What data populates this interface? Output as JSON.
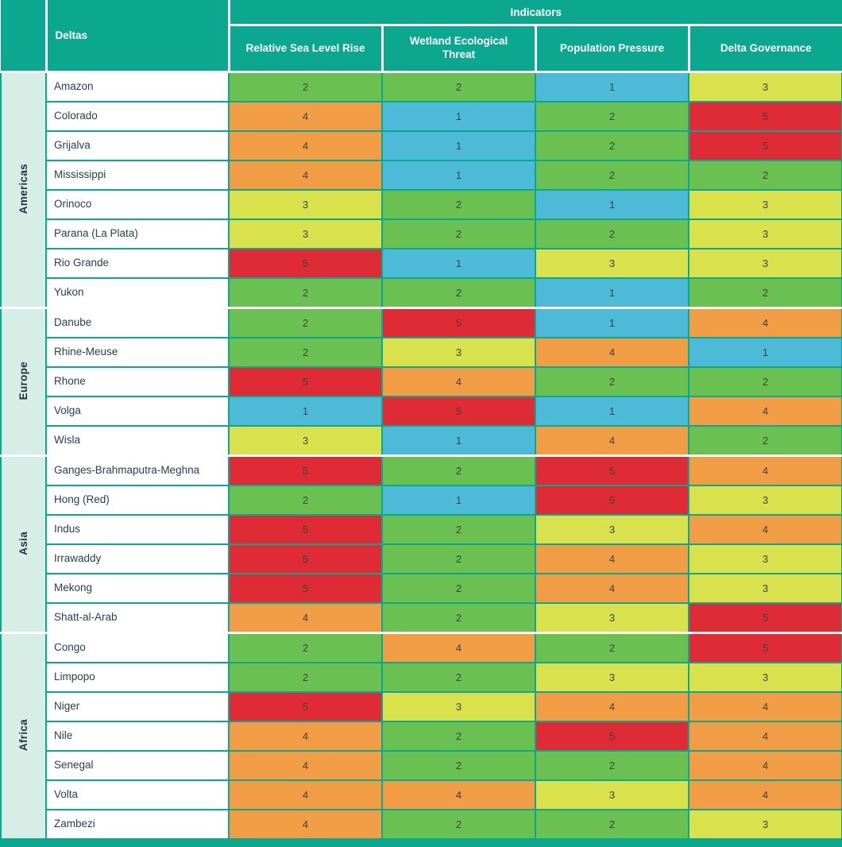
{
  "header": {
    "indicators_label": "Indicators",
    "deltas_label": "Deltas"
  },
  "colors": {
    "header_teal": "#0ba78e",
    "grid_teal": "#0ba78e",
    "region_column_bg": "#d7eee7",
    "header_text": "#ffffff",
    "delta_name_text": "#26404f",
    "score_text": "#3e4141"
  },
  "chart_data": {
    "type": "heatmap",
    "title": "Indicators",
    "row_header": "Deltas",
    "columns": [
      "Relative Sea Level Rise",
      "Wetland Ecological Threat",
      "Population Pressure",
      "Delta Governance"
    ],
    "value_scale": {
      "min": 1,
      "max": 5
    },
    "color_map": {
      "1": "#4dbbd8",
      "2": "#6ac152",
      "3": "#d9e24d",
      "4": "#f09d45",
      "5": "#df2b35"
    },
    "groups": [
      {
        "region": "Americas",
        "rows": [
          {
            "delta": "Amazon",
            "values": [
              2,
              2,
              1,
              3
            ]
          },
          {
            "delta": "Colorado",
            "values": [
              4,
              1,
              2,
              5
            ]
          },
          {
            "delta": "Grijalva",
            "values": [
              4,
              1,
              2,
              5
            ]
          },
          {
            "delta": "Mississippi",
            "values": [
              4,
              1,
              2,
              2
            ]
          },
          {
            "delta": "Orinoco",
            "values": [
              3,
              2,
              1,
              3
            ]
          },
          {
            "delta": "Parana (La Plata)",
            "values": [
              3,
              2,
              2,
              3
            ]
          },
          {
            "delta": "Rio Grande",
            "values": [
              5,
              1,
              3,
              3
            ]
          },
          {
            "delta": "Yukon",
            "values": [
              2,
              2,
              1,
              2
            ]
          }
        ]
      },
      {
        "region": "Europe",
        "rows": [
          {
            "delta": "Danube",
            "values": [
              2,
              5,
              1,
              4
            ]
          },
          {
            "delta": "Rhine-Meuse",
            "values": [
              2,
              3,
              4,
              1
            ]
          },
          {
            "delta": "Rhone",
            "values": [
              5,
              4,
              2,
              2
            ]
          },
          {
            "delta": "Volga",
            "values": [
              1,
              5,
              1,
              4
            ]
          },
          {
            "delta": "Wisla",
            "values": [
              3,
              1,
              4,
              2
            ]
          }
        ]
      },
      {
        "region": "Asia",
        "rows": [
          {
            "delta": "Ganges-Brahmaputra-Meghna",
            "values": [
              5,
              2,
              5,
              4
            ]
          },
          {
            "delta": "Hong (Red)",
            "values": [
              2,
              1,
              5,
              3
            ]
          },
          {
            "delta": "Indus",
            "values": [
              5,
              2,
              3,
              4
            ]
          },
          {
            "delta": "Irrawaddy",
            "values": [
              5,
              2,
              4,
              3
            ]
          },
          {
            "delta": "Mekong",
            "values": [
              5,
              2,
              4,
              3
            ]
          },
          {
            "delta": "Shatt-al-Arab",
            "values": [
              4,
              2,
              3,
              5
            ]
          }
        ]
      },
      {
        "region": "Africa",
        "rows": [
          {
            "delta": "Congo",
            "values": [
              2,
              4,
              2,
              5
            ]
          },
          {
            "delta": "Limpopo",
            "values": [
              2,
              2,
              3,
              3
            ]
          },
          {
            "delta": "Niger",
            "values": [
              5,
              3,
              4,
              4
            ]
          },
          {
            "delta": "Nile",
            "values": [
              4,
              2,
              5,
              4
            ]
          },
          {
            "delta": "Senegal",
            "values": [
              4,
              2,
              2,
              4
            ]
          },
          {
            "delta": "Volta",
            "values": [
              4,
              4,
              3,
              4
            ]
          },
          {
            "delta": "Zambezi",
            "values": [
              4,
              2,
              2,
              3
            ]
          }
        ]
      }
    ]
  }
}
